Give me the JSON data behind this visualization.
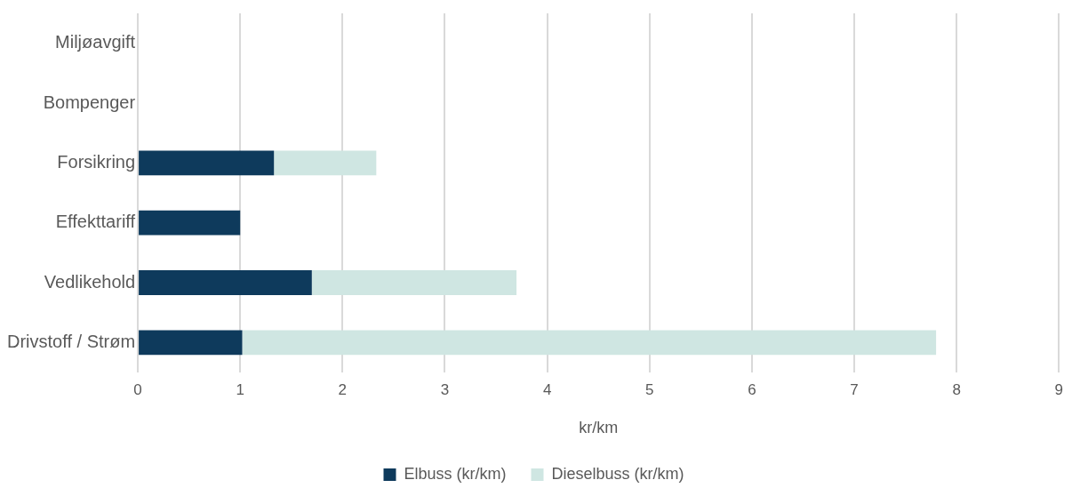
{
  "chart_data": {
    "type": "bar",
    "orientation": "horizontal",
    "stacked": true,
    "categories": [
      "Miljøavgift",
      "Bompenger",
      "Forsikring",
      "Effekttariff",
      "Vedlikehold",
      "Drivstoff / Strøm"
    ],
    "series": [
      {
        "name": "Elbuss (kr/km)",
        "color": "#0e3a5c",
        "values": [
          0,
          0,
          1.33,
          1.0,
          1.7,
          1.02
        ]
      },
      {
        "name": "Dieselbuss (kr/km)",
        "color": "#cfe6e2",
        "values": [
          0,
          0,
          1.0,
          0,
          2.0,
          6.78
        ]
      }
    ],
    "xlabel": "kr/km",
    "xlim": [
      0,
      9
    ],
    "xticks": [
      0,
      1,
      2,
      3,
      4,
      5,
      6,
      7,
      8,
      9
    ],
    "grid": "x",
    "legend": "bottom"
  }
}
